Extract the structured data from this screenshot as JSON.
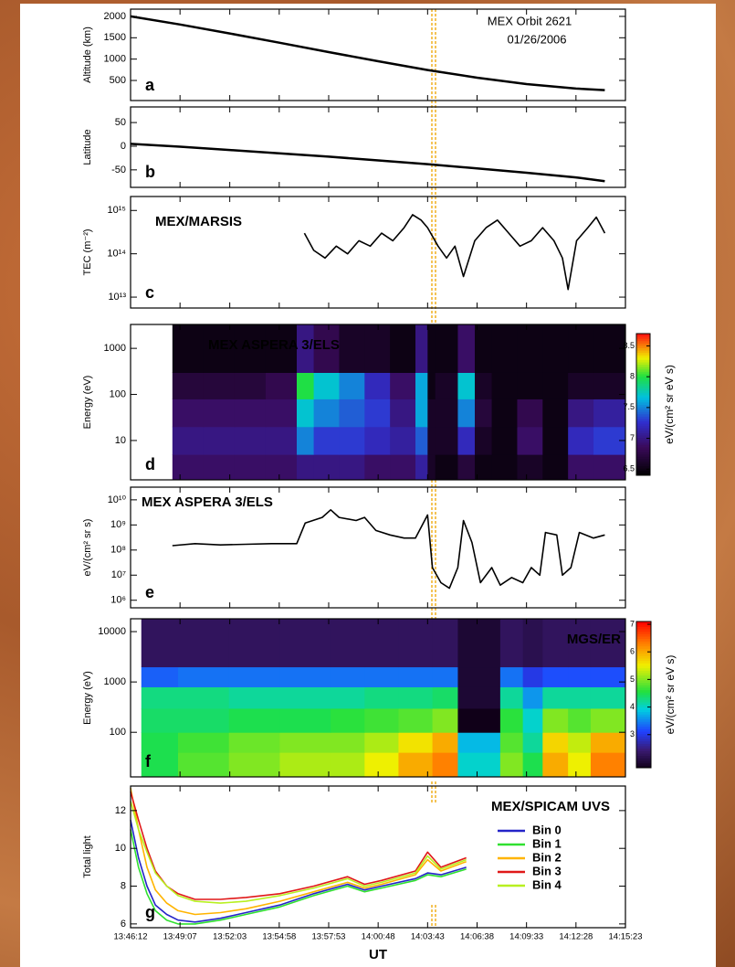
{
  "chart_data": [
    {
      "type": "line",
      "ylabel": "Altitude (km)",
      "title": "MEX Orbit 2621",
      "subtitle": "01/26/2006",
      "panel_label": "a",
      "xlim": [
        "13:46:12",
        "14:15:23"
      ],
      "ylim": [
        30,
        2170
      ],
      "yticks": [
        500,
        1000,
        1500,
        2000
      ],
      "x": [
        "13:46:12",
        "13:49:07",
        "13:52:03",
        "13:54:58",
        "13:57:53",
        "14:00:48",
        "14:03:43",
        "14:06:38",
        "14:09:33",
        "14:12:28",
        "14:14:10"
      ],
      "values": [
        2000,
        1810,
        1600,
        1385,
        1165,
        950,
        745,
        565,
        415,
        310,
        275
      ]
    },
    {
      "type": "line",
      "ylabel": "Latitude",
      "panel_label": "b",
      "xlim": [
        "13:46:12",
        "14:15:23"
      ],
      "ylim": [
        -87,
        83
      ],
      "yticks": [
        -50,
        0,
        50
      ],
      "x": [
        "13:46:12",
        "13:49:07",
        "13:52:03",
        "13:54:58",
        "13:57:53",
        "14:00:48",
        "14:03:43",
        "14:06:38",
        "14:09:33",
        "14:12:28",
        "14:14:10"
      ],
      "values": [
        5,
        -1,
        -8,
        -15,
        -22,
        -30,
        -38,
        -47,
        -56,
        -66,
        -74
      ]
    },
    {
      "type": "line",
      "ylabel": "TEC (m⁻²)",
      "title": "MEX/MARSIS",
      "panel_label": "c",
      "log_y": true,
      "xlim": [
        "13:46:12",
        "14:15:23"
      ],
      "ylim": [
        5600000000000.0,
        2100000000000000.0
      ],
      "yticks": [
        {
          "value": 10000000000000.0,
          "label": "10¹³"
        },
        {
          "value": 100000000000000.0,
          "label": "10¹⁴"
        },
        {
          "value": 1000000000000000.0,
          "label": "10¹⁵"
        }
      ],
      "x": [
        "13:56:27",
        "13:57:00",
        "13:57:40",
        "13:58:20",
        "13:59:00",
        "13:59:40",
        "14:00:20",
        "14:01:00",
        "14:01:40",
        "14:02:20",
        "14:02:50",
        "14:03:20",
        "14:03:43",
        "14:04:20",
        "14:04:50",
        "14:05:20",
        "14:05:50",
        "14:06:30",
        "14:07:10",
        "14:07:50",
        "14:08:30",
        "14:09:10",
        "14:09:50",
        "14:10:30",
        "14:11:10",
        "14:11:40",
        "14:12:00",
        "14:12:30",
        "14:13:10",
        "14:13:40",
        "14:14:10"
      ],
      "values": [
        300000000000000.0,
        120000000000000.0,
        80000000000000.0,
        150000000000000.0,
        100000000000000.0,
        200000000000000.0,
        150000000000000.0,
        300000000000000.0,
        200000000000000.0,
        400000000000000.0,
        800000000000000.0,
        600000000000000.0,
        400000000000000.0,
        150000000000000.0,
        80000000000000.0,
        150000000000000.0,
        30000000000000.0,
        200000000000000.0,
        400000000000000.0,
        600000000000000.0,
        300000000000000.0,
        150000000000000.0,
        200000000000000.0,
        400000000000000.0,
        200000000000000.0,
        80000000000000.0,
        15000000000000.0,
        200000000000000.0,
        400000000000000.0,
        700000000000000.0,
        300000000000000.0
      ]
    },
    {
      "type": "heatmap",
      "ylabel": "Energy (eV)",
      "title": "MEX ASPERA 3/ELS",
      "panel_label": "d",
      "log_y": true,
      "xlim": [
        "13:46:12",
        "14:15:23"
      ],
      "ylim": [
        1.4,
        3300
      ],
      "yticks": [
        10,
        100,
        1000
      ],
      "x": [
        "13:48:40",
        "13:50:30",
        "13:52:20",
        "13:54:10",
        "13:56:00",
        "13:57:00",
        "13:58:30",
        "14:00:00",
        "14:01:30",
        "14:03:00",
        "14:03:43",
        "14:04:10",
        "14:05:30",
        "14:06:30",
        "14:07:30",
        "14:09:00",
        "14:10:30",
        "14:12:00",
        "14:13:30",
        "14:15:23"
      ],
      "y": [
        1.4,
        5,
        20,
        80,
        300,
        3300
      ],
      "z": [
        [
          6.9,
          6.9,
          6.9,
          6.9,
          7.0,
          7.0,
          7.0,
          6.9,
          6.9,
          7.1,
          6.6,
          6.5,
          6.7,
          6.5,
          6.5,
          6.6,
          6.5,
          6.9,
          6.9
        ],
        [
          7.0,
          7.0,
          7.0,
          7.0,
          7.5,
          7.3,
          7.3,
          7.2,
          7.1,
          7.4,
          6.6,
          6.6,
          7.2,
          6.6,
          6.5,
          6.9,
          6.5,
          7.2,
          7.3
        ],
        [
          6.9,
          6.9,
          6.9,
          6.9,
          7.7,
          7.5,
          7.4,
          7.3,
          7.0,
          7.6,
          6.6,
          6.6,
          7.5,
          6.7,
          6.5,
          6.8,
          6.5,
          7.0,
          7.1
        ],
        [
          6.7,
          6.7,
          6.7,
          6.8,
          8.0,
          7.7,
          7.5,
          7.2,
          6.9,
          7.6,
          6.5,
          6.6,
          7.7,
          6.6,
          6.5,
          6.5,
          6.5,
          6.6,
          6.6
        ],
        [
          6.5,
          6.5,
          6.5,
          6.5,
          7.0,
          6.8,
          6.6,
          6.6,
          6.5,
          7.0,
          6.5,
          6.5,
          6.9,
          6.5,
          6.5,
          6.5,
          6.5,
          6.5,
          6.5
        ]
      ],
      "clim": [
        6.4,
        8.7
      ],
      "cticks": [
        6.5,
        7.0,
        7.5,
        8.0,
        8.5
      ],
      "colorbar_label": "eV/(cm² sr eV s)"
    },
    {
      "type": "line",
      "ylabel": "eV/(cm² sr s)",
      "title": "MEX ASPERA 3/ELS",
      "panel_label": "e",
      "log_y": true,
      "xlim": [
        "13:46:12",
        "14:15:23"
      ],
      "ylim": [
        500000.0,
        32000000000.0
      ],
      "yticks": [
        {
          "value": 1000000.0,
          "label": "10⁶"
        },
        {
          "value": 10000000.0,
          "label": "10⁷"
        },
        {
          "value": 100000000.0,
          "label": "10⁸"
        },
        {
          "value": 1000000000.0,
          "label": "10⁹"
        },
        {
          "value": 10000000000.0,
          "label": "10¹⁰"
        }
      ],
      "x": [
        "13:48:40",
        "13:50:00",
        "13:51:30",
        "13:53:00",
        "13:54:30",
        "13:56:00",
        "13:56:30",
        "13:57:30",
        "13:58:00",
        "13:58:30",
        "13:59:30",
        "14:00:00",
        "14:00:40",
        "14:01:30",
        "14:02:20",
        "14:03:00",
        "14:03:43",
        "14:04:00",
        "14:04:30",
        "14:05:00",
        "14:05:30",
        "14:05:50",
        "14:06:20",
        "14:06:50",
        "14:07:30",
        "14:08:00",
        "14:08:40",
        "14:09:20",
        "14:09:50",
        "14:10:20",
        "14:10:40",
        "14:11:20",
        "14:11:40",
        "14:12:10",
        "14:12:40",
        "14:13:30",
        "14:14:10"
      ],
      "values": [
        150000000.0,
        180000000.0,
        160000000.0,
        170000000.0,
        180000000.0,
        180000000.0,
        1200000000.0,
        2000000000.0,
        4000000000.0,
        2000000000.0,
        1500000000.0,
        2000000000.0,
        600000000.0,
        400000000.0,
        300000000.0,
        300000000.0,
        2500000000.0,
        20000000.0,
        5000000.0,
        3000000.0,
        20000000.0,
        1500000000.0,
        200000000.0,
        5000000.0,
        20000000.0,
        4000000.0,
        8000000.0,
        5000000.0,
        20000000.0,
        10000000.0,
        500000000.0,
        400000000.0,
        10000000.0,
        20000000.0,
        500000000.0,
        300000000.0,
        400000000.0
      ]
    },
    {
      "type": "heatmap",
      "ylabel": "Energy (eV)",
      "title": "MGS/ER",
      "panel_label": "f",
      "log_y": true,
      "xlim": [
        "13:46:12",
        "14:15:23"
      ],
      "ylim": [
        13,
        18000
      ],
      "yticks": [
        100,
        1000,
        10000
      ],
      "x": [
        "13:46:50",
        "13:49:00",
        "13:52:00",
        "13:55:00",
        "13:58:00",
        "14:00:00",
        "14:02:00",
        "14:04:00",
        "14:05:30",
        "14:08:00",
        "14:09:20",
        "14:10:30",
        "14:12:00",
        "14:13:20",
        "14:15:23"
      ],
      "y": [
        13,
        40,
        100,
        300,
        800,
        2000,
        18000
      ],
      "z": [
        [
          4.5,
          4.8,
          5.0,
          5.2,
          5.2,
          5.5,
          6.0,
          6.3,
          4.0,
          5.0,
          4.5,
          6.0,
          5.5,
          6.3
        ],
        [
          4.5,
          4.7,
          4.9,
          5.0,
          5.0,
          5.2,
          5.6,
          6.0,
          3.8,
          4.8,
          4.2,
          5.7,
          5.3,
          6.0
        ],
        [
          4.4,
          4.4,
          4.5,
          4.5,
          4.6,
          4.7,
          4.8,
          5.0,
          1.8,
          4.6,
          4.0,
          5.0,
          4.8,
          5.0
        ],
        [
          4.3,
          4.3,
          4.2,
          4.2,
          4.2,
          4.3,
          4.3,
          4.4,
          2.0,
          4.2,
          3.6,
          4.2,
          4.2,
          4.2
        ],
        [
          3.3,
          3.4,
          3.4,
          3.4,
          3.4,
          3.4,
          3.4,
          3.4,
          2.0,
          3.4,
          3.0,
          3.2,
          3.2,
          3.2
        ],
        [
          2.3,
          2.3,
          2.3,
          2.3,
          2.3,
          2.3,
          2.3,
          2.3,
          2.0,
          2.3,
          2.2,
          2.3,
          2.3,
          2.3
        ]
      ],
      "clim": [
        1.8,
        7.1
      ],
      "cticks": [
        3,
        4,
        5,
        6,
        7
      ],
      "colorbar_label": "eV/(cm² sr eV s)"
    },
    {
      "type": "line",
      "ylabel": "Total light",
      "title": "MEX/SPICAM UVS",
      "panel_label": "g",
      "xlabel": "UT",
      "xlim": [
        "13:46:12",
        "14:15:23"
      ],
      "ylim": [
        5.8,
        13.3
      ],
      "yticks": [
        6,
        8,
        10,
        12
      ],
      "xticks": [
        "13:46:12",
        "13:49:07",
        "13:52:03",
        "13:54:58",
        "13:57:53",
        "14:00:48",
        "14:03:43",
        "14:06:38",
        "14:09:33",
        "14:12:28",
        "14:15:23"
      ],
      "x": [
        "13:46:12",
        "13:46:40",
        "13:47:10",
        "13:47:40",
        "13:48:20",
        "13:49:00",
        "13:50:00",
        "13:51:30",
        "13:53:00",
        "13:55:00",
        "13:57:00",
        "13:59:00",
        "14:00:00",
        "14:01:00",
        "14:03:00",
        "14:03:43",
        "14:04:30",
        "14:06:00"
      ],
      "series": [
        {
          "name": "Bin 0",
          "color": "#2424c8",
          "values": [
            11.5,
            9.5,
            8.0,
            7.0,
            6.5,
            6.2,
            6.1,
            6.3,
            6.6,
            7.0,
            7.6,
            8.1,
            7.8,
            8.0,
            8.4,
            8.7,
            8.6,
            9.0
          ]
        },
        {
          "name": "Bin 1",
          "color": "#30e030",
          "values": [
            11.0,
            9.0,
            7.6,
            6.7,
            6.2,
            6.0,
            6.0,
            6.2,
            6.5,
            6.9,
            7.5,
            8.0,
            7.7,
            7.9,
            8.3,
            8.6,
            8.5,
            8.9
          ]
        },
        {
          "name": "Bin 2",
          "color": "#ffb400",
          "values": [
            13.2,
            11.0,
            9.0,
            7.8,
            7.1,
            6.7,
            6.5,
            6.6,
            6.8,
            7.2,
            7.7,
            8.2,
            7.9,
            8.1,
            8.6,
            9.4,
            8.8,
            9.3
          ]
        },
        {
          "name": "Bin 3",
          "color": "#e01818",
          "values": [
            13.0,
            11.5,
            10.0,
            8.8,
            8.0,
            7.6,
            7.3,
            7.3,
            7.4,
            7.6,
            8.0,
            8.5,
            8.1,
            8.3,
            8.8,
            9.8,
            9.0,
            9.5
          ]
        },
        {
          "name": "Bin 4",
          "color": "#b8f020",
          "values": [
            12.5,
            11.0,
            9.8,
            8.7,
            8.0,
            7.5,
            7.2,
            7.1,
            7.2,
            7.5,
            7.9,
            8.4,
            8.0,
            8.2,
            8.7,
            9.6,
            8.9,
            9.4
          ]
        }
      ]
    }
  ]
}
